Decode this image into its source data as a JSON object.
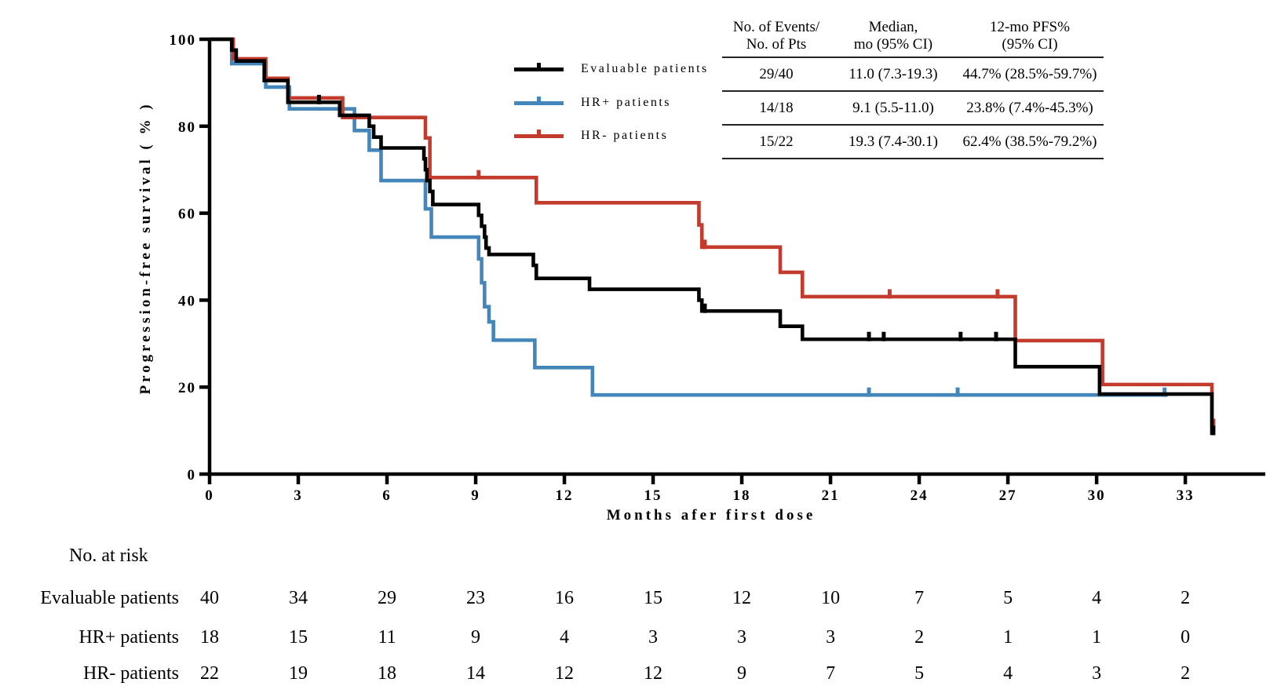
{
  "figure": {
    "y_axis_title": "Progression-free survival ( % )",
    "x_axis_title": "Months afer first dose"
  },
  "legend": {
    "items": [
      {
        "label": "Evaluable patients",
        "color": "#000000"
      },
      {
        "label": "HR+ patients",
        "color": "#4486ba"
      },
      {
        "label": "HR- patients",
        "color": "#c23b2c"
      }
    ]
  },
  "stats": {
    "headers": [
      [
        "No. of Events/",
        "No. of Pts"
      ],
      [
        "Median,",
        "mo (95% CI)"
      ],
      [
        "12-mo PFS%",
        "(95% CI)"
      ]
    ],
    "rows": [
      [
        "29/40",
        "11.0 (7.3-19.3)",
        "44.7% (28.5%-59.7%)"
      ],
      [
        "14/18",
        "9.1 (5.5-11.0)",
        "23.8% (7.4%-45.3%)"
      ],
      [
        "15/22",
        "19.3 (7.4-30.1)",
        "62.4% (38.5%-79.2%)"
      ]
    ]
  },
  "risk_table": {
    "title": "No. at risk",
    "rows": [
      {
        "label": "Evaluable patients",
        "values": [
          40,
          34,
          29,
          23,
          16,
          15,
          12,
          10,
          7,
          5,
          4,
          2
        ]
      },
      {
        "label": "HR+ patients",
        "values": [
          18,
          15,
          11,
          9,
          4,
          3,
          3,
          3,
          2,
          1,
          1,
          0
        ]
      },
      {
        "label": "HR- patients",
        "values": [
          22,
          19,
          18,
          14,
          12,
          12,
          9,
          7,
          5,
          4,
          3,
          2
        ]
      }
    ]
  },
  "chart_data": {
    "type": "line",
    "subtype": "kaplan-meier-step",
    "title": "",
    "xlabel": "Months afer first dose",
    "ylabel": "Progression-free survival ( % )",
    "xlim": [
      0,
      34.5
    ],
    "ylim": [
      0,
      100
    ],
    "x_ticks": [
      0,
      3,
      6,
      9,
      12,
      15,
      18,
      21,
      24,
      27,
      30,
      33
    ],
    "y_ticks": [
      0,
      20,
      40,
      60,
      80,
      100
    ],
    "grid": false,
    "legend_position": "upper-right",
    "series": [
      {
        "name": "Evaluable patients",
        "color": "#000000",
        "end_month": 34.0,
        "median_mo": 11.0,
        "pfs_12mo_pct": 44.7,
        "steps": [
          [
            0,
            100
          ],
          [
            0.75,
            97.5
          ],
          [
            0.9,
            95
          ],
          [
            1.85,
            90.5
          ],
          [
            2.65,
            85.5
          ],
          [
            4.4,
            82.5
          ],
          [
            5.4,
            80
          ],
          [
            5.55,
            77.5
          ],
          [
            5.8,
            75
          ],
          [
            7.25,
            72.5
          ],
          [
            7.3,
            70
          ],
          [
            7.35,
            67.5
          ],
          [
            7.45,
            65
          ],
          [
            7.55,
            62
          ],
          [
            9.1,
            59.5
          ],
          [
            9.2,
            57
          ],
          [
            9.3,
            54.5
          ],
          [
            9.35,
            52
          ],
          [
            9.45,
            50.5
          ],
          [
            10.95,
            48
          ],
          [
            11.05,
            45
          ],
          [
            12.85,
            42.5
          ],
          [
            16.55,
            40
          ],
          [
            16.65,
            37.5
          ],
          [
            19.3,
            34
          ],
          [
            20.05,
            31
          ],
          [
            27.25,
            24.7
          ],
          [
            30.1,
            18.4
          ],
          [
            33.9,
            9.4
          ]
        ],
        "censor_months": [
          3.7,
          16.75,
          22.3,
          22.8,
          25.4,
          26.6,
          33.95
        ]
      },
      {
        "name": "HR+ patients",
        "color": "#4486ba",
        "end_month": 32.4,
        "median_mo": 9.1,
        "pfs_12mo_pct": 23.8,
        "steps": [
          [
            0,
            100
          ],
          [
            0.75,
            94.4
          ],
          [
            1.9,
            89
          ],
          [
            2.7,
            84
          ],
          [
            4.9,
            79
          ],
          [
            5.4,
            74.5
          ],
          [
            5.8,
            67.5
          ],
          [
            7.3,
            61
          ],
          [
            7.5,
            54.5
          ],
          [
            9.1,
            49.5
          ],
          [
            9.2,
            44
          ],
          [
            9.3,
            38.5
          ],
          [
            9.45,
            35
          ],
          [
            9.6,
            30.8
          ],
          [
            11.0,
            24.5
          ],
          [
            12.95,
            18.2
          ]
        ],
        "censor_months": [
          22.3,
          25.3,
          32.3
        ]
      },
      {
        "name": "HR- patients",
        "color": "#c23b2c",
        "end_month": 34.0,
        "median_mo": 19.3,
        "pfs_12mo_pct": 62.4,
        "steps": [
          [
            0,
            100
          ],
          [
            0.8,
            95.5
          ],
          [
            1.9,
            91
          ],
          [
            2.65,
            86.5
          ],
          [
            4.5,
            82
          ],
          [
            7.3,
            77.3
          ],
          [
            7.45,
            68.2
          ],
          [
            11.05,
            62.4
          ],
          [
            16.55,
            57.3
          ],
          [
            16.65,
            52.2
          ],
          [
            19.3,
            46.4
          ],
          [
            20.05,
            40.8
          ],
          [
            27.25,
            30.7
          ],
          [
            30.2,
            20.6
          ],
          [
            33.9,
            11.0
          ]
        ],
        "censor_months": [
          9.1,
          16.75,
          23.0,
          26.65,
          33.95
        ]
      }
    ]
  }
}
